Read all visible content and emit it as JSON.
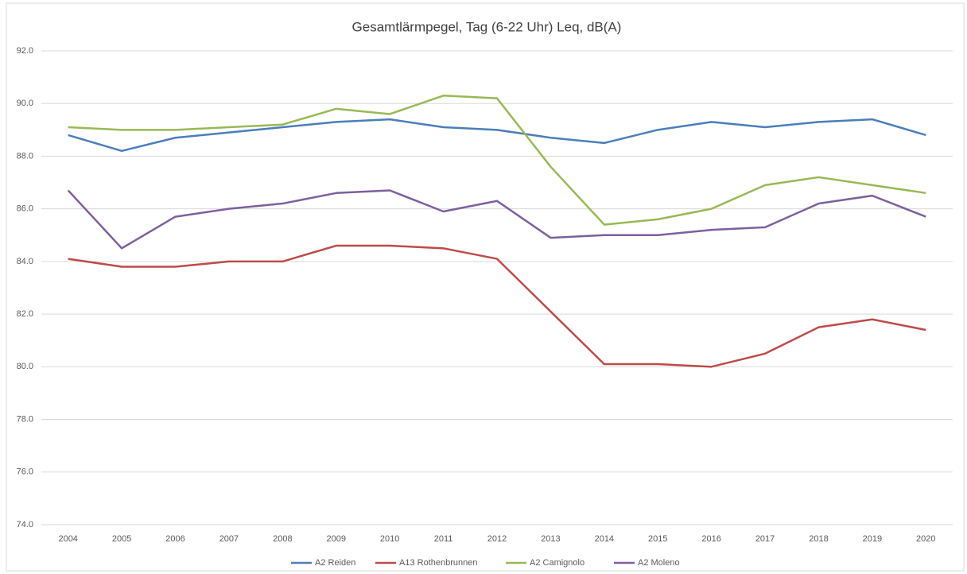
{
  "chart_data": {
    "type": "line",
    "title": "Gesamtlärmpegel, Tag (6-22 Uhr) Leq, dB(A)",
    "categories": [
      "2004",
      "2005",
      "2006",
      "2007",
      "2008",
      "2009",
      "2010",
      "2011",
      "2012",
      "2013",
      "2014",
      "2015",
      "2016",
      "2017",
      "2018",
      "2019",
      "2020"
    ],
    "series": [
      {
        "name": "A2 Reiden",
        "color": "#4a7ebb",
        "values": [
          88.8,
          88.2,
          88.7,
          88.9,
          89.1,
          89.3,
          89.4,
          89.1,
          89.0,
          88.7,
          88.5,
          89.0,
          89.3,
          89.1,
          89.3,
          89.4,
          88.8
        ]
      },
      {
        "name": "A13 Rothenbrunnen",
        "color": "#be4b48",
        "values": [
          84.1,
          83.8,
          83.8,
          84.0,
          84.0,
          84.6,
          84.6,
          84.5,
          84.1,
          82.1,
          80.1,
          80.1,
          80.0,
          80.5,
          81.5,
          81.8,
          81.4
        ]
      },
      {
        "name": "A2 Camignolo",
        "color": "#98b954",
        "values": [
          89.1,
          89.0,
          89.0,
          89.1,
          89.2,
          89.8,
          89.6,
          90.3,
          90.2,
          87.6,
          85.4,
          85.6,
          86.0,
          86.9,
          87.2,
          86.9,
          86.6
        ]
      },
      {
        "name": "A2 Moleno",
        "color": "#7d5fa0",
        "values": [
          86.7,
          84.5,
          85.7,
          86.0,
          86.2,
          86.6,
          86.7,
          85.9,
          86.3,
          84.9,
          85.0,
          85.0,
          85.2,
          85.3,
          86.2,
          86.5,
          85.7
        ]
      }
    ],
    "ylim": [
      74,
      92
    ],
    "yticks": [
      {
        "value": 74,
        "label": "74.0"
      },
      {
        "value": 76,
        "label": "76.0"
      },
      {
        "value": 78,
        "label": "78.0"
      },
      {
        "value": 80,
        "label": "80.0"
      },
      {
        "value": 82,
        "label": "82.0"
      },
      {
        "value": 84,
        "label": "84.0"
      },
      {
        "value": 86,
        "label": "86.0"
      },
      {
        "value": 88,
        "label": "88.0"
      },
      {
        "value": 90,
        "label": "90.0"
      },
      {
        "value": 92,
        "label": "92.0"
      }
    ],
    "grid": true,
    "legend": "bottom"
  }
}
